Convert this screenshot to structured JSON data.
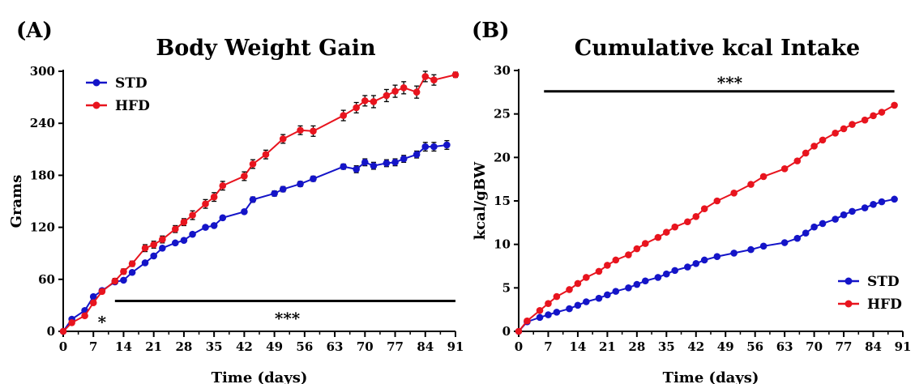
{
  "colors": {
    "STD": "#1414c8",
    "HFD": "#e8141e",
    "axis": "#000000"
  },
  "chart_data": [
    {
      "panel": "(A)",
      "type": "line",
      "title": "Body Weight Gain",
      "xlabel": "Time (days)",
      "ylabel": "Grams",
      "xlim": [
        0,
        91
      ],
      "ylim": [
        0,
        300
      ],
      "xticks": [
        0,
        7,
        14,
        21,
        28,
        35,
        42,
        49,
        56,
        63,
        70,
        77,
        84,
        91
      ],
      "yticks": [
        0,
        60,
        120,
        180,
        240,
        300
      ],
      "grid": false,
      "legend_position": "top-left",
      "error_bars": true,
      "series": [
        {
          "name": "STD",
          "color": "#1414c8",
          "points": [
            [
              0,
              0
            ],
            [
              2,
              14
            ],
            [
              5,
              24
            ],
            [
              7,
              40
            ],
            [
              9,
              47
            ],
            [
              12,
              57
            ],
            [
              14,
              59
            ],
            [
              16,
              68
            ],
            [
              19,
              79
            ],
            [
              21,
              87
            ],
            [
              23,
              96
            ],
            [
              26,
              102
            ],
            [
              28,
              105
            ],
            [
              30,
              112
            ],
            [
              33,
              120
            ],
            [
              35,
              122
            ],
            [
              37,
              131
            ],
            [
              42,
              138
            ],
            [
              44,
              152
            ],
            [
              49,
              159
            ],
            [
              51,
              164
            ],
            [
              55,
              170
            ],
            [
              58,
              176
            ],
            [
              65,
              190
            ],
            [
              68,
              187
            ],
            [
              70,
              195
            ],
            [
              72,
              191
            ],
            [
              75,
              194
            ],
            [
              77,
              195
            ],
            [
              79,
              199
            ],
            [
              82,
              204
            ],
            [
              84,
              213
            ],
            [
              86,
              213
            ],
            [
              89,
              215
            ]
          ],
          "errors": [
            0,
            2,
            2,
            2,
            2,
            2,
            2,
            2,
            2,
            2,
            2,
            2,
            2,
            2,
            2,
            2,
            2,
            2,
            3,
            3,
            3,
            3,
            3,
            3,
            4,
            4,
            4,
            4,
            4,
            4,
            4,
            5,
            5,
            5
          ]
        },
        {
          "name": "HFD",
          "color": "#e8141e",
          "points": [
            [
              0,
              0
            ],
            [
              2,
              10
            ],
            [
              5,
              18
            ],
            [
              7,
              33
            ],
            [
              9,
              46
            ],
            [
              12,
              58
            ],
            [
              14,
              69
            ],
            [
              16,
              78
            ],
            [
              19,
              96
            ],
            [
              21,
              100
            ],
            [
              23,
              106
            ],
            [
              26,
              118
            ],
            [
              28,
              126
            ],
            [
              30,
              134
            ],
            [
              33,
              147
            ],
            [
              35,
              155
            ],
            [
              37,
              168
            ],
            [
              42,
              179
            ],
            [
              44,
              193
            ],
            [
              47,
              204
            ],
            [
              51,
              222
            ],
            [
              55,
              232
            ],
            [
              58,
              231
            ],
            [
              65,
              249
            ],
            [
              68,
              258
            ],
            [
              70,
              266
            ],
            [
              72,
              265
            ],
            [
              75,
              272
            ],
            [
              77,
              277
            ],
            [
              79,
              281
            ],
            [
              82,
              276
            ],
            [
              84,
              294
            ],
            [
              86,
              290
            ],
            [
              91,
              296
            ]
          ],
          "errors": [
            0,
            2,
            2,
            2,
            2,
            3,
            3,
            3,
            4,
            4,
            4,
            4,
            4,
            5,
            5,
            5,
            5,
            5,
            5,
            5,
            5,
            5,
            6,
            6,
            6,
            6,
            7,
            7,
            7,
            7,
            7,
            6,
            6,
            3
          ]
        }
      ],
      "annotations": [
        {
          "text": "*",
          "x": 9,
          "y": 10
        },
        {
          "text": "***",
          "x": 52,
          "y": 14,
          "bar_from": 12,
          "bar_to": 91,
          "bar_y": 35
        }
      ]
    },
    {
      "panel": "(B)",
      "type": "line",
      "title": "Cumulative kcal Intake",
      "xlabel": "Time (days)",
      "ylabel": "kcal/gBW",
      "xlim": [
        0,
        91
      ],
      "ylim": [
        0,
        30
      ],
      "xticks": [
        0,
        7,
        14,
        21,
        28,
        35,
        42,
        49,
        56,
        63,
        70,
        77,
        84,
        91
      ],
      "yticks": [
        0,
        5,
        10,
        15,
        20,
        25,
        30
      ],
      "grid": false,
      "legend_position": "bottom-right",
      "series": [
        {
          "name": "STD",
          "color": "#1414c8",
          "points": [
            [
              0,
              0
            ],
            [
              2,
              1.1
            ],
            [
              5,
              1.6
            ],
            [
              7,
              1.9
            ],
            [
              9,
              2.2
            ],
            [
              12,
              2.6
            ],
            [
              14,
              3.0
            ],
            [
              16,
              3.4
            ],
            [
              19,
              3.8
            ],
            [
              21,
              4.2
            ],
            [
              23,
              4.6
            ],
            [
              26,
              5.0
            ],
            [
              28,
              5.4
            ],
            [
              30,
              5.8
            ],
            [
              33,
              6.2
            ],
            [
              35,
              6.6
            ],
            [
              37,
              7.0
            ],
            [
              40,
              7.4
            ],
            [
              42,
              7.8
            ],
            [
              44,
              8.2
            ],
            [
              47,
              8.6
            ],
            [
              51,
              9.0
            ],
            [
              55,
              9.4
            ],
            [
              58,
              9.8
            ],
            [
              63,
              10.2
            ],
            [
              66,
              10.7
            ],
            [
              68,
              11.3
            ],
            [
              70,
              12.0
            ],
            [
              72,
              12.4
            ],
            [
              75,
              12.9
            ],
            [
              77,
              13.4
            ],
            [
              79,
              13.8
            ],
            [
              82,
              14.2
            ],
            [
              84,
              14.6
            ],
            [
              86,
              14.9
            ],
            [
              89,
              15.2
            ]
          ]
        },
        {
          "name": "HFD",
          "color": "#e8141e",
          "points": [
            [
              0,
              0
            ],
            [
              2,
              1.2
            ],
            [
              5,
              2.4
            ],
            [
              7,
              3.2
            ],
            [
              9,
              4.0
            ],
            [
              12,
              4.8
            ],
            [
              14,
              5.5
            ],
            [
              16,
              6.2
            ],
            [
              19,
              6.9
            ],
            [
              21,
              7.6
            ],
            [
              23,
              8.2
            ],
            [
              26,
              8.8
            ],
            [
              28,
              9.5
            ],
            [
              30,
              10.1
            ],
            [
              33,
              10.8
            ],
            [
              35,
              11.4
            ],
            [
              37,
              12.0
            ],
            [
              40,
              12.6
            ],
            [
              42,
              13.2
            ],
            [
              44,
              14.1
            ],
            [
              47,
              15.0
            ],
            [
              51,
              15.9
            ],
            [
              55,
              16.9
            ],
            [
              58,
              17.8
            ],
            [
              63,
              18.7
            ],
            [
              66,
              19.6
            ],
            [
              68,
              20.5
            ],
            [
              70,
              21.3
            ],
            [
              72,
              22.0
            ],
            [
              75,
              22.8
            ],
            [
              77,
              23.3
            ],
            [
              79,
              23.8
            ],
            [
              82,
              24.3
            ],
            [
              84,
              24.8
            ],
            [
              86,
              25.2
            ],
            [
              89,
              26.0
            ]
          ]
        }
      ],
      "annotations": [
        {
          "text": "***",
          "x": 50,
          "y": 28.5,
          "bar_from": 6,
          "bar_to": 89,
          "bar_y": 27.6
        }
      ]
    }
  ]
}
